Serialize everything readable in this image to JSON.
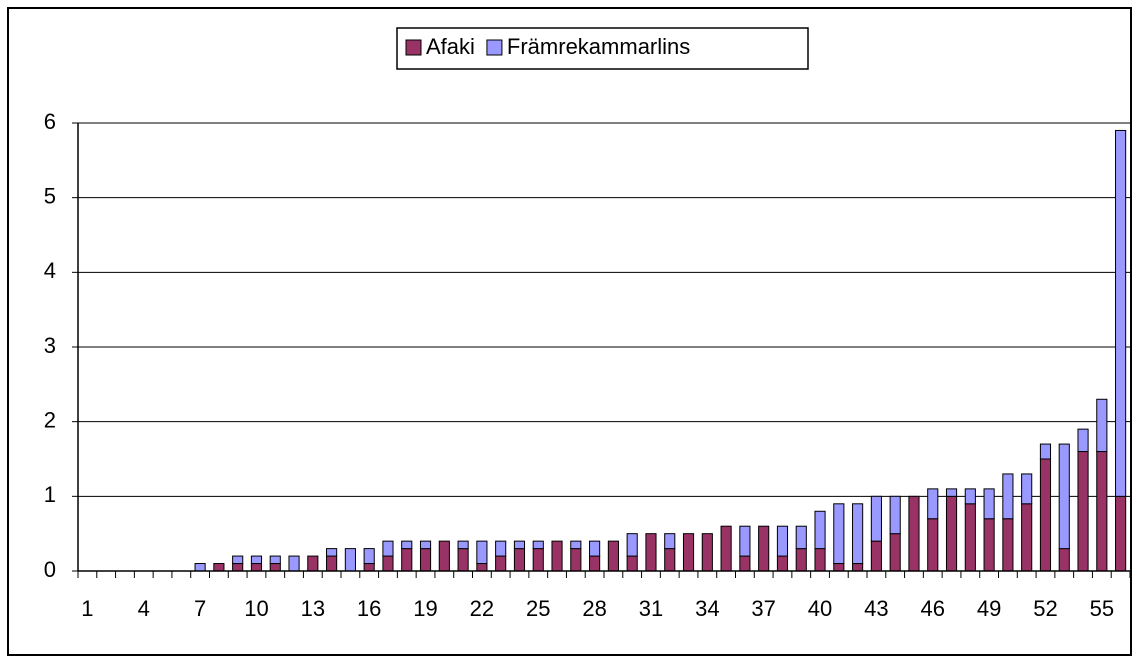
{
  "chart_data": {
    "type": "stacked-bar",
    "categories": [
      "1",
      null,
      null,
      "4",
      null,
      null,
      "7",
      null,
      null,
      "10",
      null,
      null,
      "13",
      null,
      null,
      "16",
      null,
      null,
      "19",
      null,
      null,
      "22",
      null,
      null,
      "25",
      null,
      null,
      "28",
      null,
      null,
      "31",
      null,
      null,
      "34",
      null,
      null,
      "37",
      null,
      null,
      "40",
      null,
      null,
      "43",
      null,
      null,
      "46",
      null,
      null,
      "49",
      null,
      null,
      "52",
      null,
      null,
      "55",
      null
    ],
    "series": [
      {
        "name": "Afaki",
        "color": "#993366",
        "values": [
          0,
          0,
          0,
          0,
          0,
          0,
          0,
          0.1,
          0.1,
          0.1,
          0.1,
          0,
          0.2,
          0.2,
          0,
          0.1,
          0.2,
          0.3,
          0.3,
          0.4,
          0.3,
          0.1,
          0.2,
          0.3,
          0.3,
          0.4,
          0.3,
          0.2,
          0.4,
          0.2,
          0.5,
          0.3,
          0.5,
          0.5,
          0.6,
          0.2,
          0.6,
          0.2,
          0.3,
          0.3,
          0.1,
          0.1,
          0.4,
          0.5,
          1.0,
          0.7,
          1.0,
          0.9,
          0.7,
          0.7,
          0.9,
          1.5,
          0.3,
          1.6,
          1.6,
          1.0
        ]
      },
      {
        "name": "Främrekammarlins",
        "color": "#9999ff",
        "values": [
          0,
          0,
          0,
          0,
          0,
          0,
          0.1,
          0,
          0.1,
          0.1,
          0.1,
          0.2,
          0,
          0.1,
          0.3,
          0.2,
          0.2,
          0.1,
          0.1,
          0,
          0.1,
          0.3,
          0.2,
          0.1,
          0.1,
          0,
          0.1,
          0.2,
          0,
          0.3,
          0,
          0.2,
          0,
          0,
          0,
          0.4,
          0,
          0.4,
          0.3,
          0.5,
          0.8,
          0.8,
          0.6,
          0.5,
          0,
          0.4,
          0.1,
          0.2,
          0.4,
          0.6,
          0.4,
          0.2,
          1.4,
          0.3,
          0.7,
          4.9
        ]
      }
    ],
    "ylim": [
      0,
      6
    ],
    "yticks": [
      0,
      1,
      2,
      3,
      4,
      5,
      6
    ],
    "grid": true,
    "legend": "top"
  }
}
